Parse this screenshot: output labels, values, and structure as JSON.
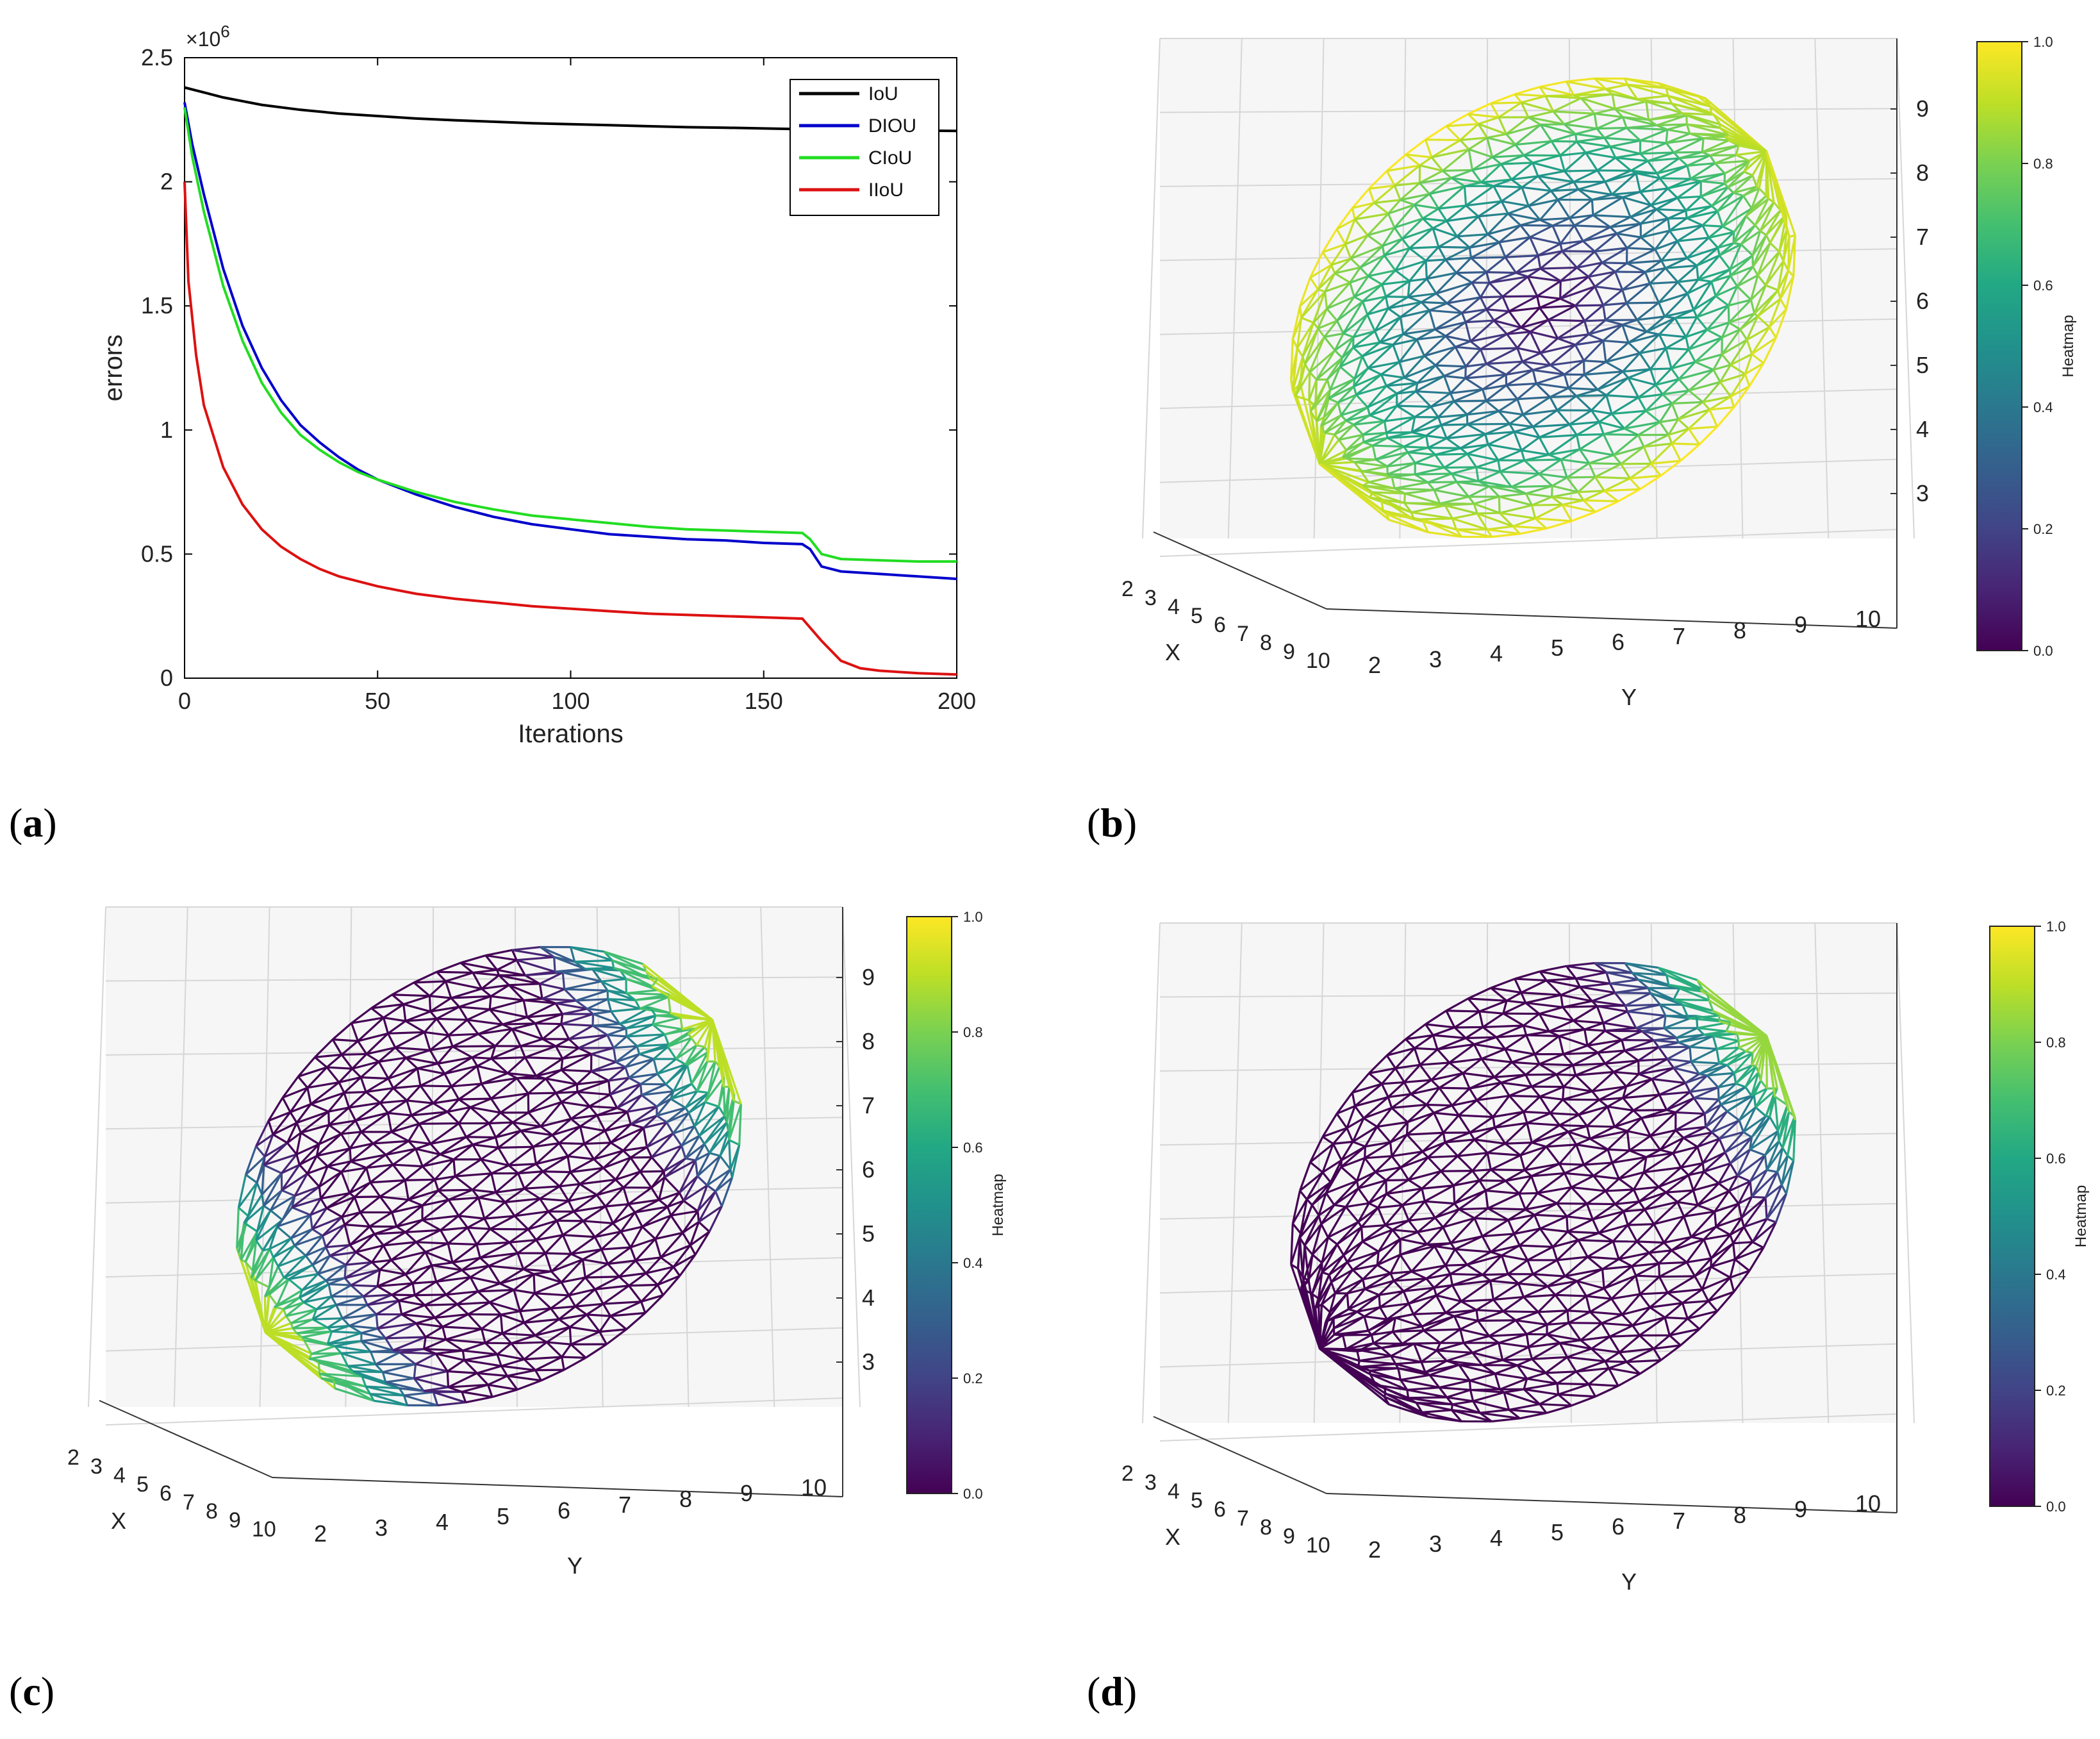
{
  "panels": {
    "a": {
      "label": "a"
    },
    "b": {
      "label": "b"
    },
    "c": {
      "label": "c"
    },
    "d": {
      "label": "d"
    }
  },
  "chart_data": [
    {
      "panel": "a",
      "type": "line",
      "title": "",
      "xlabel": "Iterations",
      "ylabel": "errors",
      "exponent_label": "×10",
      "exponent_power": "6",
      "xlim": [
        0,
        200
      ],
      "ylim": [
        0,
        2.5
      ],
      "xticks": [
        0,
        50,
        100,
        150,
        200
      ],
      "yticks": [
        0,
        0.5,
        1,
        1.5,
        2,
        2.5
      ],
      "legend_position": "top-right",
      "series": [
        {
          "name": "IoU",
          "color": "#000000",
          "x": [
            0,
            5,
            10,
            20,
            30,
            40,
            50,
            60,
            70,
            80,
            90,
            100,
            110,
            120,
            130,
            140,
            150,
            160,
            170,
            180,
            190,
            200
          ],
          "y": [
            2.38,
            2.36,
            2.34,
            2.31,
            2.29,
            2.275,
            2.265,
            2.255,
            2.248,
            2.242,
            2.236,
            2.232,
            2.228,
            2.224,
            2.22,
            2.218,
            2.215,
            2.212,
            2.21,
            2.208,
            2.206,
            2.205
          ]
        },
        {
          "name": "DIOU",
          "color": "#0000cc",
          "x": [
            0,
            2,
            5,
            10,
            15,
            20,
            25,
            30,
            35,
            40,
            45,
            50,
            60,
            70,
            80,
            90,
            100,
            110,
            120,
            130,
            140,
            150,
            160,
            162,
            165,
            170,
            180,
            190,
            200
          ],
          "y": [
            2.32,
            2.15,
            1.95,
            1.65,
            1.42,
            1.25,
            1.12,
            1.02,
            0.95,
            0.89,
            0.84,
            0.8,
            0.74,
            0.69,
            0.65,
            0.62,
            0.6,
            0.58,
            0.57,
            0.56,
            0.555,
            0.545,
            0.54,
            0.52,
            0.45,
            0.43,
            0.42,
            0.41,
            0.4
          ]
        },
        {
          "name": "CIoU",
          "color": "#22dd22",
          "x": [
            0,
            2,
            5,
            10,
            15,
            20,
            25,
            30,
            35,
            40,
            45,
            50,
            60,
            70,
            80,
            90,
            100,
            110,
            120,
            130,
            140,
            150,
            160,
            162,
            165,
            170,
            180,
            190,
            200
          ],
          "y": [
            2.3,
            2.1,
            1.88,
            1.58,
            1.36,
            1.19,
            1.07,
            0.98,
            0.92,
            0.87,
            0.83,
            0.8,
            0.75,
            0.71,
            0.68,
            0.655,
            0.64,
            0.625,
            0.61,
            0.6,
            0.595,
            0.59,
            0.585,
            0.56,
            0.5,
            0.48,
            0.475,
            0.47,
            0.47
          ]
        },
        {
          "name": "IIoU",
          "color": "#dd1111",
          "x": [
            0,
            1,
            3,
            5,
            10,
            15,
            20,
            25,
            30,
            35,
            40,
            50,
            60,
            70,
            80,
            90,
            100,
            110,
            120,
            130,
            140,
            150,
            160,
            165,
            170,
            175,
            180,
            190,
            200
          ],
          "y": [
            2.0,
            1.6,
            1.3,
            1.1,
            0.85,
            0.7,
            0.6,
            0.53,
            0.48,
            0.44,
            0.41,
            0.37,
            0.34,
            0.32,
            0.305,
            0.29,
            0.28,
            0.27,
            0.26,
            0.255,
            0.25,
            0.245,
            0.24,
            0.15,
            0.07,
            0.04,
            0.03,
            0.02,
            0.015
          ]
        }
      ]
    },
    {
      "panel": "b",
      "type": "mesh3d",
      "xlabel": "X",
      "ylabel": "Y",
      "colorbar_label": "Heatmap",
      "x_ticks": [
        "2",
        "3",
        "4",
        "5",
        "6",
        "7",
        "8",
        "9",
        "10"
      ],
      "y_ticks": [
        "2",
        "3",
        "4",
        "5",
        "6",
        "7",
        "8",
        "9",
        "10"
      ],
      "z_ticks": [
        "3",
        "4",
        "5",
        "6",
        "7",
        "8",
        "9"
      ],
      "colorbar_ticks": [
        "0.0",
        "0.2",
        "0.4",
        "0.6",
        "0.8",
        "1.0"
      ],
      "colorbar_range": [
        0,
        1
      ],
      "heat_pattern": "radial"
    },
    {
      "panel": "c",
      "type": "mesh3d",
      "xlabel": "X",
      "ylabel": "Y",
      "colorbar_label": "Heatmap",
      "x_ticks": [
        "2",
        "3",
        "4",
        "5",
        "6",
        "7",
        "8",
        "9",
        "10"
      ],
      "y_ticks": [
        "2",
        "3",
        "4",
        "5",
        "6",
        "7",
        "8",
        "9",
        "10"
      ],
      "z_ticks": [
        "3",
        "4",
        "5",
        "6",
        "7",
        "8",
        "9"
      ],
      "colorbar_ticks": [
        "0.0",
        "0.2",
        "0.4",
        "0.6",
        "0.8",
        "1.0"
      ],
      "colorbar_range": [
        0,
        1
      ],
      "heat_pattern": "ends"
    },
    {
      "panel": "d",
      "type": "mesh3d",
      "xlabel": "X",
      "ylabel": "Y",
      "colorbar_label": "Heatmap",
      "x_ticks": [
        "2",
        "3",
        "4",
        "5",
        "6",
        "7",
        "8",
        "9",
        "10"
      ],
      "y_ticks": [
        "2",
        "3",
        "4",
        "5",
        "6",
        "7",
        "8",
        "9",
        "10"
      ],
      "z_ticks": [],
      "colorbar_ticks": [
        "0.0",
        "0.2",
        "0.4",
        "0.6",
        "0.8",
        "1.0"
      ],
      "colorbar_range": [
        0,
        1
      ],
      "heat_pattern": "bottom"
    }
  ]
}
